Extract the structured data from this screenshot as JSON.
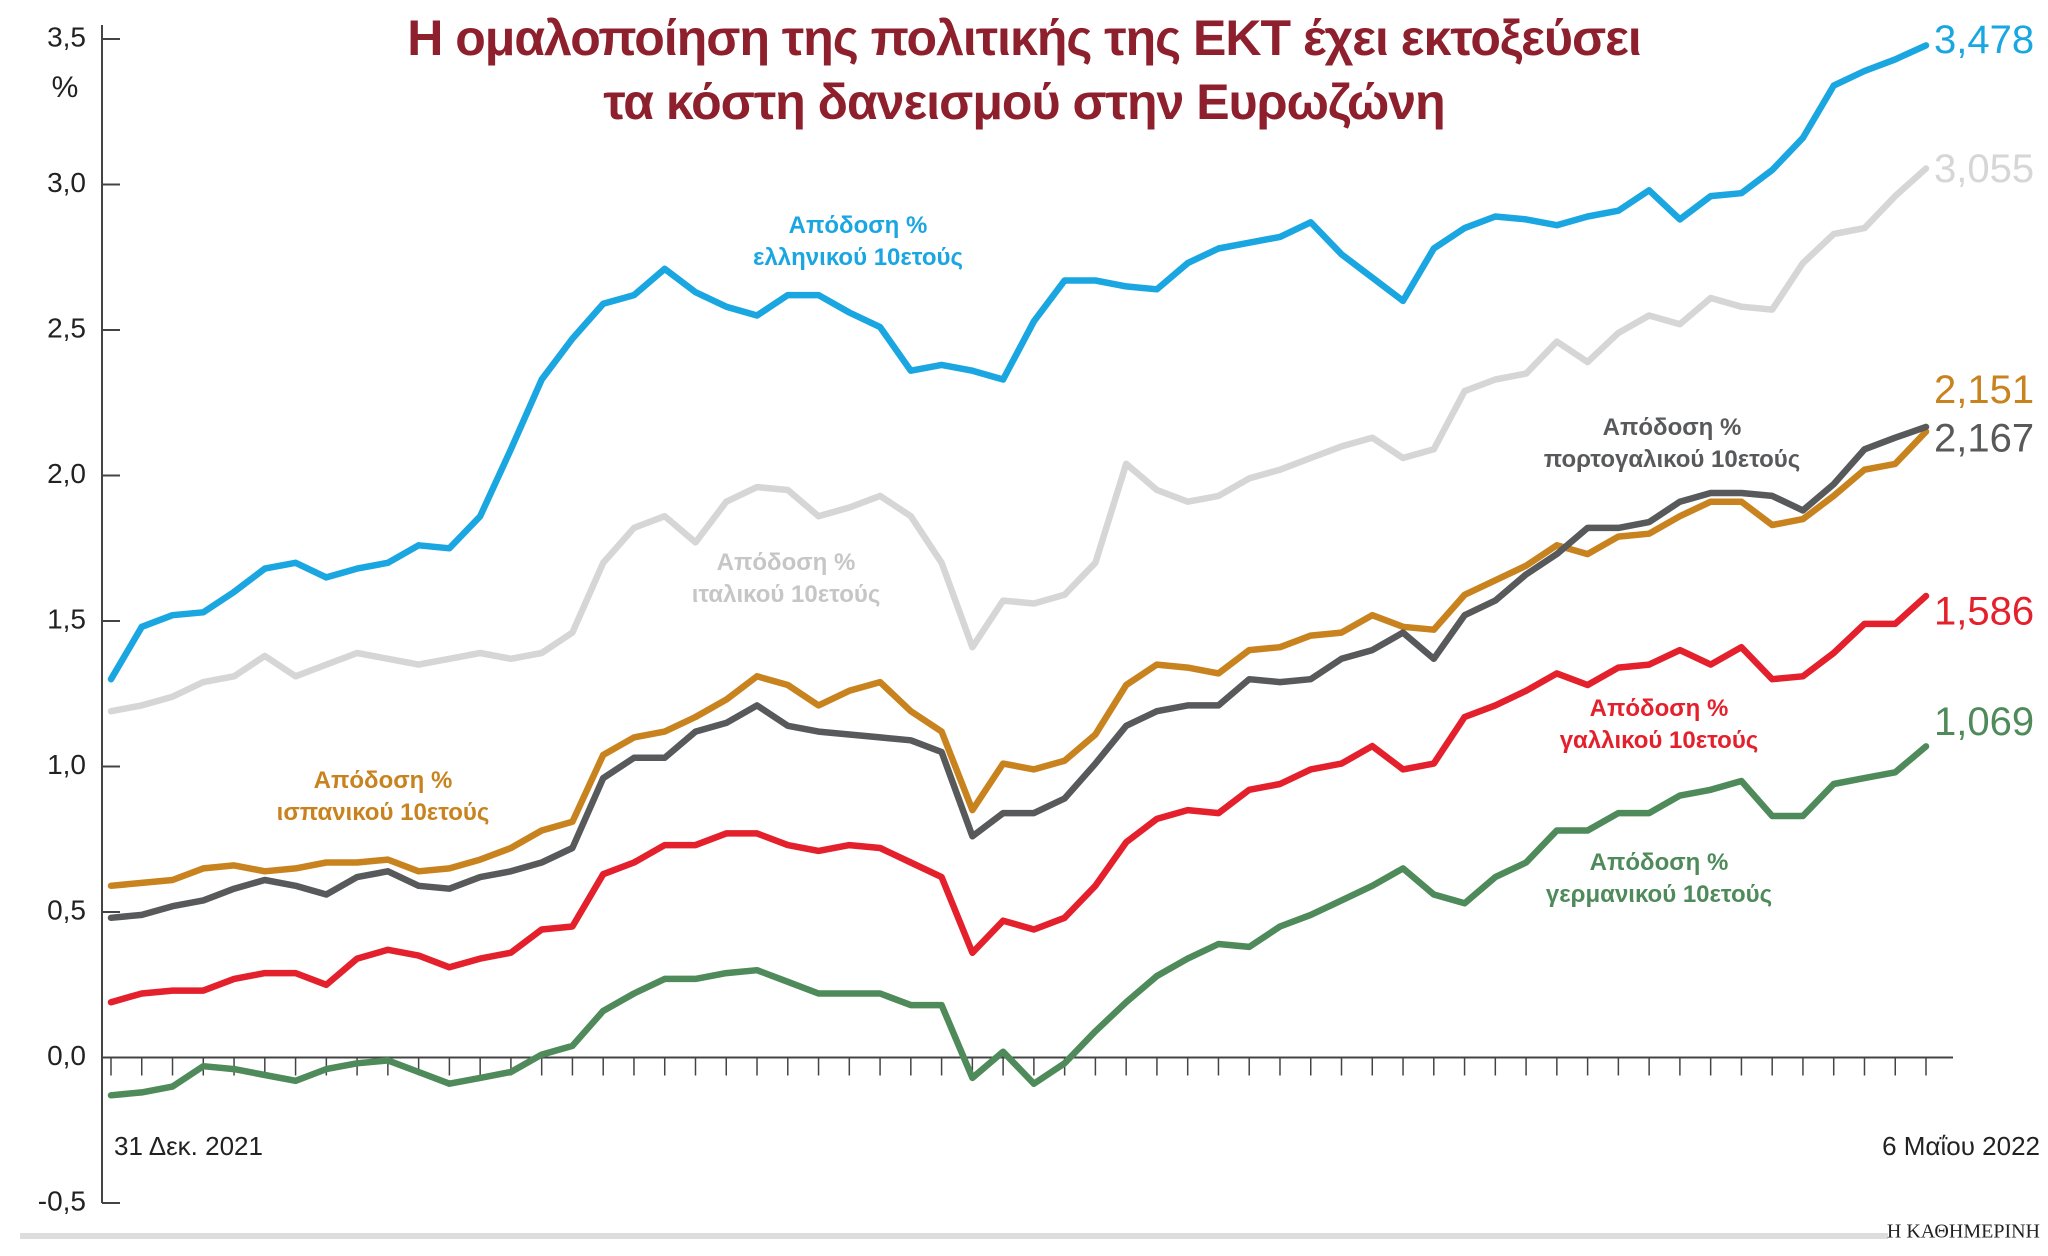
{
  "chart_data": {
    "type": "line",
    "title": "Η ομαλοποίηση της πολιτικής της ΕΚΤ έχει εκτοξεύσει\nτα κόστη δανεισμού στην Ευρωζώνη",
    "y_label": "%",
    "source": "Η ΚΑΘΗΜΕΡΙΝΗ",
    "categories": [
      "31 Δεκ. 2021",
      null,
      null,
      null,
      null,
      null,
      null,
      null,
      null,
      null,
      null,
      null,
      null,
      null,
      null,
      null,
      null,
      null,
      null,
      null,
      null,
      null,
      null,
      null,
      null,
      null,
      null,
      null,
      null,
      null,
      null,
      null,
      null,
      null,
      null,
      null,
      null,
      null,
      null,
      null,
      null,
      null,
      null,
      null,
      null,
      null,
      null,
      null,
      null,
      null,
      null,
      null,
      null,
      null,
      null,
      null,
      null,
      null,
      null,
      "6 Μαΐου 2022"
    ],
    "ylim": [
      -0.5,
      3.5
    ],
    "yticks": [
      {
        "value": -0.5,
        "label": "-0,5"
      },
      {
        "value": 0,
        "label": "0,0"
      },
      {
        "value": 0.5,
        "label": "0,5"
      },
      {
        "value": 1,
        "label": "1,0"
      },
      {
        "value": 1.5,
        "label": "1,5"
      },
      {
        "value": 2,
        "label": "2,0"
      },
      {
        "value": 2.5,
        "label": "2,5"
      },
      {
        "value": 3,
        "label": "3,0"
      },
      {
        "value": 3.5,
        "label": "3,5"
      }
    ],
    "grid": false,
    "series": [
      {
        "name": "Απόδοση %\nιταλικού 10ετούς",
        "color": "#d6d6d6",
        "values": [
          1.19,
          1.21,
          1.24,
          1.29,
          1.31,
          1.38,
          1.31,
          1.35,
          1.39,
          1.37,
          1.35,
          1.37,
          1.39,
          1.37,
          1.39,
          1.46,
          1.7,
          1.82,
          1.86,
          1.77,
          1.91,
          1.96,
          1.95,
          1.86,
          1.89,
          1.93,
          1.86,
          1.7,
          1.41,
          1.57,
          1.56,
          1.59,
          1.7,
          2.04,
          1.95,
          1.91,
          1.93,
          1.99,
          2.02,
          2.06,
          2.1,
          2.13,
          2.06,
          2.09,
          2.29,
          2.33,
          2.35,
          2.46,
          2.39,
          2.49,
          2.55,
          2.52,
          2.61,
          2.58,
          2.57,
          2.73,
          2.83,
          2.85,
          2.96,
          3.055
        ],
        "value_labels": [
          null,
          null,
          null,
          null,
          null,
          null,
          null,
          null,
          null,
          null,
          null,
          null,
          null,
          null,
          null,
          null,
          null,
          null,
          null,
          null,
          null,
          null,
          null,
          null,
          null,
          null,
          null,
          null,
          null,
          null,
          null,
          null,
          null,
          null,
          null,
          null,
          null,
          null,
          null,
          null,
          null,
          null,
          null,
          null,
          null,
          null,
          null,
          null,
          null,
          null,
          null,
          null,
          null,
          null,
          null,
          null,
          null,
          null,
          null,
          "3,055"
        ]
      },
      {
        "name": "Απόδοση %\nελληνικού 10ετούς",
        "color": "#1aa6e1",
        "values": [
          1.3,
          1.48,
          1.52,
          1.53,
          1.6,
          1.68,
          1.7,
          1.65,
          1.68,
          1.7,
          1.76,
          1.75,
          1.86,
          2.09,
          2.33,
          2.47,
          2.59,
          2.62,
          2.71,
          2.63,
          2.58,
          2.55,
          2.62,
          2.62,
          2.56,
          2.51,
          2.36,
          2.38,
          2.36,
          2.33,
          2.53,
          2.67,
          2.67,
          2.65,
          2.64,
          2.73,
          2.78,
          2.8,
          2.82,
          2.87,
          2.76,
          2.68,
          2.6,
          2.78,
          2.85,
          2.89,
          2.88,
          2.86,
          2.89,
          2.91,
          2.98,
          2.88,
          2.96,
          2.97,
          3.05,
          3.16,
          3.34,
          3.39,
          3.43,
          3.478
        ],
        "value_labels": [
          null,
          null,
          null,
          null,
          null,
          null,
          null,
          null,
          null,
          null,
          null,
          null,
          null,
          null,
          null,
          null,
          null,
          null,
          null,
          null,
          null,
          null,
          null,
          null,
          null,
          null,
          null,
          null,
          null,
          null,
          null,
          null,
          null,
          null,
          null,
          null,
          null,
          null,
          null,
          null,
          null,
          null,
          null,
          null,
          null,
          null,
          null,
          null,
          null,
          null,
          null,
          null,
          null,
          null,
          null,
          null,
          null,
          null,
          null,
          "3,478"
        ]
      },
      {
        "name": "Απόδοση %\nισπανικού 10ετούς",
        "color": "#c8831f",
        "values": [
          0.59,
          0.6,
          0.61,
          0.65,
          0.66,
          0.64,
          0.65,
          0.67,
          0.67,
          0.68,
          0.64,
          0.65,
          0.68,
          0.72,
          0.78,
          0.81,
          1.04,
          1.1,
          1.12,
          1.17,
          1.23,
          1.31,
          1.28,
          1.21,
          1.26,
          1.29,
          1.19,
          1.12,
          0.85,
          1.01,
          0.99,
          1.02,
          1.11,
          1.28,
          1.35,
          1.34,
          1.32,
          1.4,
          1.41,
          1.45,
          1.46,
          1.52,
          1.48,
          1.47,
          1.59,
          1.64,
          1.69,
          1.76,
          1.73,
          1.79,
          1.8,
          1.86,
          1.91,
          1.91,
          1.83,
          1.85,
          1.93,
          2.02,
          2.04,
          2.151
        ],
        "value_labels": [
          null,
          null,
          null,
          null,
          null,
          null,
          null,
          null,
          null,
          null,
          null,
          null,
          null,
          null,
          null,
          null,
          null,
          null,
          null,
          null,
          null,
          null,
          null,
          null,
          null,
          null,
          null,
          null,
          null,
          null,
          null,
          null,
          null,
          null,
          null,
          null,
          null,
          null,
          null,
          null,
          null,
          null,
          null,
          null,
          null,
          null,
          null,
          null,
          null,
          null,
          null,
          null,
          null,
          null,
          null,
          null,
          null,
          null,
          null,
          "2,151"
        ]
      },
      {
        "name": "Απόδοση %\nπορτογαλικού 10ετούς",
        "color": "#58595b",
        "values": [
          0.48,
          0.49,
          0.52,
          0.54,
          0.58,
          0.61,
          0.59,
          0.56,
          0.62,
          0.64,
          0.59,
          0.58,
          0.62,
          0.64,
          0.67,
          0.72,
          0.96,
          1.03,
          1.03,
          1.12,
          1.15,
          1.21,
          1.14,
          1.12,
          1.11,
          1.1,
          1.09,
          1.05,
          0.76,
          0.84,
          0.84,
          0.89,
          1.01,
          1.14,
          1.19,
          1.21,
          1.21,
          1.3,
          1.29,
          1.3,
          1.37,
          1.4,
          1.46,
          1.37,
          1.52,
          1.57,
          1.66,
          1.73,
          1.82,
          1.82,
          1.84,
          1.91,
          1.94,
          1.94,
          1.93,
          1.88,
          1.97,
          2.09,
          2.13,
          2.167
        ],
        "value_labels": [
          null,
          null,
          null,
          null,
          null,
          null,
          null,
          null,
          null,
          null,
          null,
          null,
          null,
          null,
          null,
          null,
          null,
          null,
          null,
          null,
          null,
          null,
          null,
          null,
          null,
          null,
          null,
          null,
          null,
          null,
          null,
          null,
          null,
          null,
          null,
          null,
          null,
          null,
          null,
          null,
          null,
          null,
          null,
          null,
          null,
          null,
          null,
          null,
          null,
          null,
          null,
          null,
          null,
          null,
          null,
          null,
          null,
          null,
          null,
          "2,167"
        ]
      },
      {
        "name": "Απόδοση %\nγαλλικού 10ετούς",
        "color": "#e3202b",
        "values": [
          0.19,
          0.22,
          0.23,
          0.23,
          0.27,
          0.29,
          0.29,
          0.25,
          0.34,
          0.37,
          0.35,
          0.31,
          0.34,
          0.36,
          0.44,
          0.45,
          0.63,
          0.67,
          0.73,
          0.73,
          0.77,
          0.77,
          0.73,
          0.71,
          0.73,
          0.72,
          0.67,
          0.62,
          0.36,
          0.47,
          0.44,
          0.48,
          0.59,
          0.74,
          0.82,
          0.85,
          0.84,
          0.92,
          0.94,
          0.99,
          1.01,
          1.07,
          0.99,
          1.01,
          1.17,
          1.21,
          1.26,
          1.32,
          1.28,
          1.34,
          1.35,
          1.4,
          1.35,
          1.41,
          1.3,
          1.31,
          1.39,
          1.49,
          1.49,
          1.586
        ],
        "value_labels": [
          null,
          null,
          null,
          null,
          null,
          null,
          null,
          null,
          null,
          null,
          null,
          null,
          null,
          null,
          null,
          null,
          null,
          null,
          null,
          null,
          null,
          null,
          null,
          null,
          null,
          null,
          null,
          null,
          null,
          null,
          null,
          null,
          null,
          null,
          null,
          null,
          null,
          null,
          null,
          null,
          null,
          null,
          null,
          null,
          null,
          null,
          null,
          null,
          null,
          null,
          null,
          null,
          null,
          null,
          null,
          null,
          null,
          null,
          null,
          "1,586"
        ]
      },
      {
        "name": "Απόδοση %\nγερμανικού 10ετούς",
        "color": "#4e8a5a",
        "values": [
          -0.13,
          -0.12,
          -0.1,
          -0.03,
          -0.04,
          -0.06,
          -0.08,
          -0.04,
          -0.02,
          -0.01,
          -0.05,
          -0.09,
          -0.07,
          -0.05,
          0.01,
          0.04,
          0.16,
          0.22,
          0.27,
          0.27,
          0.29,
          0.3,
          0.26,
          0.22,
          0.22,
          0.22,
          0.18,
          0.18,
          -0.07,
          0.02,
          -0.09,
          -0.02,
          0.09,
          0.19,
          0.28,
          0.34,
          0.39,
          0.38,
          0.45,
          0.49,
          0.54,
          0.59,
          0.65,
          0.56,
          0.53,
          0.62,
          0.67,
          0.78,
          0.78,
          0.84,
          0.84,
          0.9,
          0.92,
          0.95,
          0.83,
          0.83,
          0.94,
          0.96,
          0.98,
          1.069
        ],
        "value_labels": [
          null,
          null,
          null,
          null,
          null,
          null,
          null,
          null,
          null,
          null,
          null,
          null,
          null,
          null,
          null,
          null,
          null,
          null,
          null,
          null,
          null,
          null,
          null,
          null,
          null,
          null,
          null,
          null,
          null,
          null,
          null,
          null,
          null,
          null,
          null,
          null,
          null,
          null,
          null,
          null,
          null,
          null,
          null,
          null,
          null,
          null,
          null,
          null,
          null,
          null,
          null,
          null,
          null,
          null,
          null,
          null,
          null,
          null,
          null,
          "1,069"
        ]
      }
    ]
  }
}
